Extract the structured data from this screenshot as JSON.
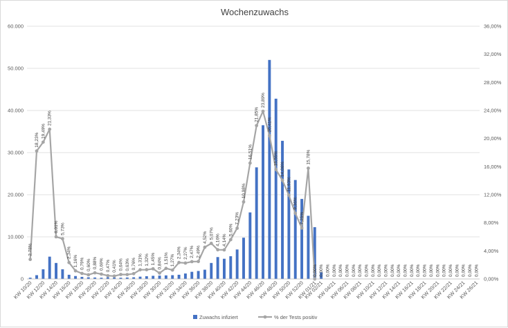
{
  "chart_data": {
    "type": "bar",
    "title": "Wochenzuwachs",
    "categories": [
      "KW 10/20",
      "KW 11/20",
      "KW 12/20",
      "KW 13/20",
      "KW 14/20",
      "KW 15/20",
      "KW 16/20",
      "KW 17/20",
      "KW 18/20",
      "KW 19/20",
      "KW 20/20",
      "KW 21/20",
      "KW 22/20",
      "KW 23/20",
      "KW 24/20",
      "KW 25/20",
      "KW 26/20",
      "KW 27/20",
      "KW 28/20",
      "KW 29/20",
      "KW 30/20",
      "KW 31/20",
      "KW 32/20",
      "KW 33/20",
      "KW 34/20",
      "KW 35/20",
      "KW 36/20",
      "KW 37/20",
      "KW 38/20",
      "KW 39/20",
      "KW 40/20",
      "KW 41/20",
      "KW 42/20",
      "KW 43/20",
      "KW 44/20",
      "KW 45/20",
      "KW 46/20",
      "KW 47/20",
      "KW 48/20",
      "KW 49/20",
      "KW 50/20",
      "KW 51/20",
      "KW 52/20",
      "KW 53/20",
      "KW 01/21",
      "KW 02/21",
      "KW 03/21",
      "KW 04/21",
      "KW 05/21",
      "KW 06/21",
      "KW 07/21",
      "KW 08/21",
      "KW 09/21",
      "KW 10/21",
      "KW 11/21",
      "KW 12/21",
      "KW 13/21",
      "KW 14/21",
      "KW 15/21",
      "KW 16/21",
      "KW 17/21",
      "KW 18/21",
      "KW 19/21",
      "KW 20/21",
      "KW 21/21",
      "KW 22/21",
      "KW 23/21",
      "KW 24/21",
      "KW 25/21",
      "KW 26/21"
    ],
    "xtick_labels": [
      "KW 10/20",
      "KW 12/20",
      "KW 14/20",
      "KW 16/20",
      "KW 18/20",
      "KW 20/20",
      "KW 22/20",
      "KW 24/20",
      "KW 26/20",
      "KW 28/20",
      "KW 30/20",
      "KW 32/20",
      "KW 34/20",
      "KW 36/20",
      "KW 38/20",
      "KW 40/20",
      "KW 42/20",
      "KW 44/20",
      "KW 46/20",
      "KW 48/20",
      "KW 50/20",
      "KW 52/20",
      "KW 01/21",
      "KW 02/21",
      "KW 04/21",
      "KW 06/21",
      "KW 08/21",
      "KW 10/21",
      "KW 12/21",
      "KW 14/21",
      "KW 16/21",
      "KW 18/21",
      "KW 20/21",
      "KW 22/21",
      "KW 24/21",
      "KW 26/21"
    ],
    "y_left_ticks": [
      "0",
      "10.000",
      "20.000",
      "30.000",
      "40.000",
      "50.000",
      "60.000"
    ],
    "y_right_ticks": [
      "0,00%",
      "4,00%",
      "8,00%",
      "12,00%",
      "16,00%",
      "20,00%",
      "24,00%",
      "28,00%",
      "32,00%",
      "36,00%"
    ],
    "y_left_range": [
      0,
      60000
    ],
    "y_right_range": [
      0,
      36
    ],
    "series": [
      {
        "name": "Zuwachs infiziert",
        "axis": "left",
        "kind": "bar",
        "color": "#4472c4",
        "values": [
          300,
          900,
          2300,
          5300,
          3800,
          2300,
          1000,
          700,
          500,
          400,
          350,
          300,
          400,
          350,
          300,
          350,
          400,
          550,
          650,
          750,
          800,
          850,
          900,
          1000,
          1300,
          1700,
          1900,
          2200,
          3800,
          5200,
          4800,
          5400,
          7000,
          9800,
          15800,
          26500,
          36500,
          52000,
          42800,
          32800,
          26000,
          23500,
          19000,
          15000,
          12300,
          1600,
          0,
          0,
          0,
          0,
          0,
          0,
          0,
          0,
          0,
          0,
          0,
          0,
          0,
          0,
          0,
          0,
          0,
          0,
          0,
          0,
          0,
          0,
          0,
          0
        ]
      },
      {
        "name": "% der Tests positiv",
        "axis": "right",
        "kind": "line",
        "color": "#a5a5a5",
        "values": [
          2.78,
          18.23,
          19.49,
          21.33,
          6.01,
          5.73,
          2.34,
          1.16,
          0.79,
          0.6,
          0.88,
          0.69,
          0.47,
          0.41,
          0.64,
          0.63,
          0.76,
          1.31,
          1.32,
          1.45,
          0.84,
          1.51,
          1.27,
          2.34,
          2.27,
          2.47,
          2.49,
          4.52,
          5.07,
          4.16,
          4.14,
          5.6,
          7.23,
          10.98,
          16.51,
          21.85,
          23.89,
          20.41,
          15.59,
          14.06,
          11.93,
          9.36,
          7.25,
          15.78,
          0.0,
          0.0,
          0.0,
          0.0,
          0.0,
          0.0,
          0.0,
          0.0,
          0.0,
          0.0,
          0.0,
          0.0,
          0.0,
          0.0,
          0.0,
          0.0,
          0.0,
          0.0,
          0.0,
          0.0,
          0.0,
          0.0,
          0.0,
          0.0,
          0.0,
          0.0
        ],
        "labels": [
          "2,78%",
          "18,23%",
          "19,49%",
          "21,33%",
          "6,01%",
          "5,73%",
          "2,34%",
          "1,16%",
          "0,79%",
          "0,60%",
          "0,88%",
          "0,69%",
          "0,47%",
          "0,41%",
          "0,64%",
          "0,63%",
          "0,76%",
          "1,31%",
          "1,32%",
          "1,45%",
          "0,84%",
          "1,51%",
          "1,27%",
          "2,34%",
          "2,27%",
          "2,47%",
          "2,49%",
          "4,52%",
          "5,07%",
          "4,16%",
          "4,14%",
          "5,60%",
          "7,23%",
          "10,98%",
          "16,51%",
          "21,85%",
          "23,89%",
          "20,41%",
          "15,59%",
          "14,06%",
          "11,93%",
          "9,36%",
          "7,25%",
          "15,78%",
          "0,00%",
          "0,00%",
          "0,00%",
          "0,00%",
          "0,00%",
          "0,00%",
          "0,00%",
          "0,00%",
          "0,00%",
          "0,00%",
          "0,00%",
          "0,00%",
          "0,00%",
          "0,00%",
          "0,00%",
          "0,00%",
          "0,00%",
          "0,00%",
          "0,00%",
          "0,00%",
          "0,00%",
          "0,00%",
          "0,00%",
          "0,00%",
          "0,00%",
          "0,00%"
        ]
      }
    ],
    "legend": {
      "position": "bottom",
      "entries": [
        "Zuwachs infiziert",
        "% der Tests positiv"
      ]
    },
    "grid": true
  }
}
